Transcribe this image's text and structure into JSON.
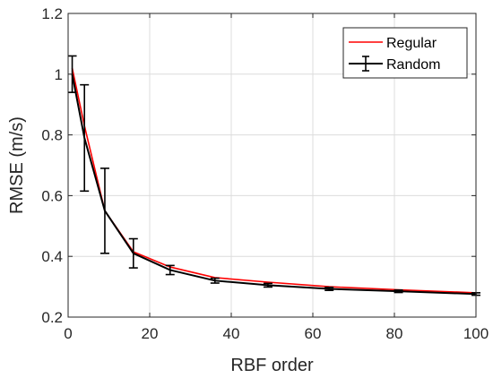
{
  "chart_data": {
    "type": "line",
    "title": "",
    "xlabel": "RBF order",
    "ylabel": "RMSE (m/s)",
    "xlim": [
      0,
      100
    ],
    "ylim": [
      0.2,
      1.2
    ],
    "xticks": [
      0,
      20,
      40,
      60,
      80,
      100
    ],
    "xtick_labels": [
      "0",
      "20",
      "40",
      "60",
      "80",
      "100"
    ],
    "yticks": [
      0.2,
      0.4,
      0.6,
      0.8,
      1.0,
      1.2
    ],
    "ytick_labels": [
      "0.2",
      "0.4",
      "0.6",
      "0.8",
      "1",
      "1.2"
    ],
    "grid": true,
    "legend_position": "top-right",
    "x": [
      1,
      4,
      9,
      16,
      25,
      36,
      49,
      64,
      81,
      100
    ],
    "series": [
      {
        "name": "Regular",
        "color": "#ff0000",
        "values": [
          1.02,
          0.83,
          0.55,
          0.415,
          0.365,
          0.33,
          0.315,
          0.3,
          0.29,
          0.28
        ]
      },
      {
        "name": "Random",
        "color": "#000000",
        "values": [
          1.0,
          0.79,
          0.55,
          0.41,
          0.355,
          0.32,
          0.305,
          0.293,
          0.285,
          0.276
        ],
        "error": [
          0.06,
          0.175,
          0.14,
          0.048,
          0.015,
          0.008,
          0.006,
          0.005,
          0.004,
          0.004
        ]
      }
    ]
  }
}
